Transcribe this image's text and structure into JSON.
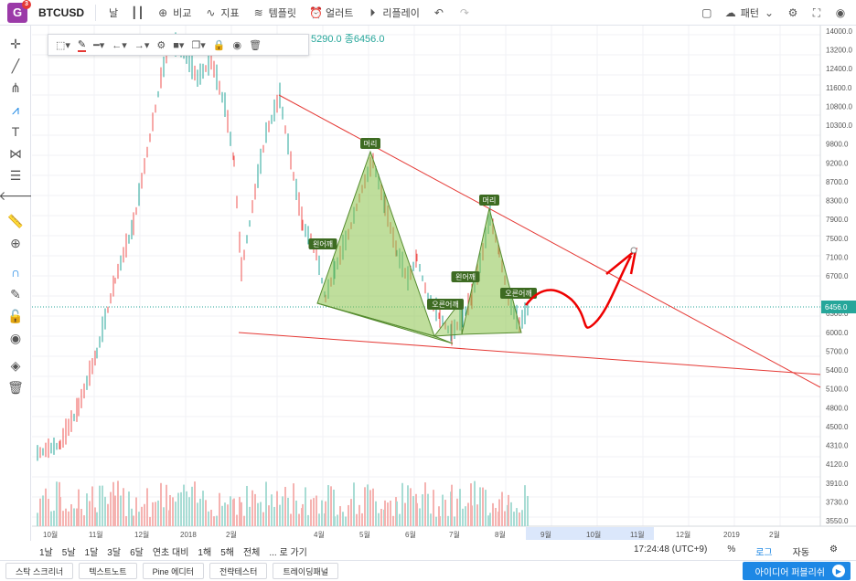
{
  "app": {
    "logo_letter": "G",
    "notification_count": "3"
  },
  "toolbar": {
    "symbol": "BTCUSD",
    "interval": "날",
    "compare": "비교",
    "indicators": "지표",
    "templates": "템플릿",
    "alerts": "얼러트",
    "replay": "리플레이",
    "patterns": "패턴"
  },
  "legend": {
    "text": "5290.0 종6456.0"
  },
  "price_axis": {
    "labels": [
      "14000.0",
      "13200.0",
      "12400.0",
      "11600.0",
      "10800.0",
      "10300.0",
      "9800.0",
      "9200.0",
      "8700.0",
      "8300.0",
      "7900.0",
      "7500.0",
      "7100.0",
      "6700.0",
      "6456.0",
      "6300.0",
      "6000.0",
      "5700.0",
      "5400.0",
      "5100.0",
      "4800.0",
      "4500.0",
      "4310.0",
      "4120.0",
      "3910.0",
      "3730.0",
      "3550.0"
    ],
    "current": "6456.0"
  },
  "time_axis": {
    "labels": [
      "10월",
      "11월",
      "12월",
      "2018",
      "2월",
      "4월",
      "5월",
      "6월",
      "7월",
      "8월",
      "9월",
      "10월",
      "11월",
      "12월",
      "2019",
      "2월"
    ]
  },
  "pattern_labels": {
    "head1": "머리",
    "left_shoulder1": "왼어깨",
    "right_shoulder1": "오른어깨",
    "head2": "머리",
    "left_shoulder2": "왼어깨",
    "right_shoulder2": "오른어깨"
  },
  "range": {
    "items": [
      "1날",
      "5날",
      "1달",
      "3달",
      "6달",
      "연초 대비",
      "1해",
      "5해",
      "전체"
    ],
    "goto": "... 로 가기",
    "clock": "17:24:48 (UTC+9)",
    "percent": "%",
    "log": "로그",
    "auto": "자동"
  },
  "bottom_tabs": [
    "스탁 스크리너",
    "텍스트노트",
    "Pine 에디터",
    "전략테스터",
    "트레이딩패널"
  ],
  "publish": {
    "label": "아이디어 퍼블리쉬"
  },
  "colors": {
    "up": "#26a69a",
    "down": "#ef5350",
    "accent": "#1e88e5",
    "pattern_fill": "#8bc34a"
  }
}
